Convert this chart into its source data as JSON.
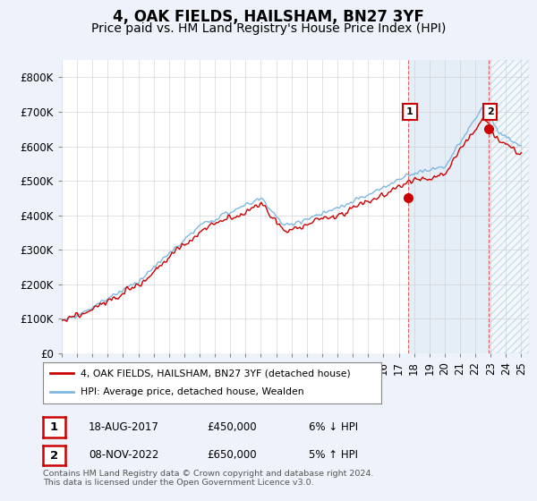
{
  "title": "4, OAK FIELDS, HAILSHAM, BN27 3YF",
  "subtitle": "Price paid vs. HM Land Registry's House Price Index (HPI)",
  "ylim": [
    0,
    850000
  ],
  "yticks": [
    0,
    100000,
    200000,
    300000,
    400000,
    500000,
    600000,
    700000,
    800000
  ],
  "ytick_labels": [
    "£0",
    "£100K",
    "£200K",
    "£300K",
    "£400K",
    "£500K",
    "£600K",
    "£700K",
    "£800K"
  ],
  "xlim_start": 1995.0,
  "xlim_end": 2025.5,
  "hpi_color": "#7eb8e0",
  "price_color": "#cc0000",
  "marker1_date": 2017.625,
  "marker1_price": 450000,
  "marker2_date": 2022.86,
  "marker2_price": 650000,
  "legend_line1": "4, OAK FIELDS, HAILSHAM, BN27 3YF (detached house)",
  "legend_line2": "HPI: Average price, detached house, Wealden",
  "table_row1": [
    "1",
    "18-AUG-2017",
    "£450,000",
    "6% ↓ HPI"
  ],
  "table_row2": [
    "2",
    "08-NOV-2022",
    "£650,000",
    "5% ↑ HPI"
  ],
  "footnote": "Contains HM Land Registry data © Crown copyright and database right 2024.\nThis data is licensed under the Open Government Licence v3.0.",
  "background_color": "#eef2fa",
  "plot_bg_color": "#ffffff",
  "grid_color": "#cccccc",
  "shade_color": "#dae8f5",
  "title_fontsize": 12,
  "subtitle_fontsize": 10,
  "tick_fontsize": 8.5
}
